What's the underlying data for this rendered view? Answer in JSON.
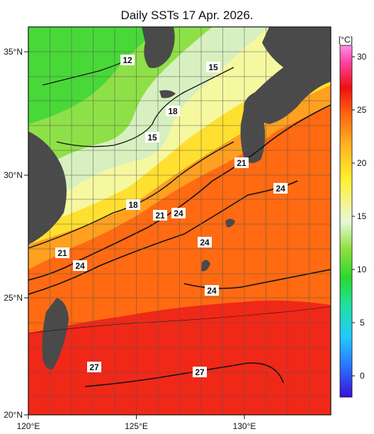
{
  "title": "Daily SSTs 17 Apr. 2026.",
  "map": {
    "lon_range": [
      120,
      134
    ],
    "lat_range": [
      20,
      36
    ],
    "lon_ticks": [
      "120°E",
      "125°E",
      "130°E"
    ],
    "lat_ticks": [
      "20°N",
      "25°N",
      "30°N",
      "35°N"
    ],
    "grid": true,
    "contour_labels": [
      "12",
      "15",
      "18",
      "15",
      "21",
      "24",
      "18",
      "21",
      "24",
      "24",
      "21",
      "24",
      "24",
      "27",
      "27"
    ]
  },
  "colorbar": {
    "unit": "[°C]",
    "ticks": [
      "0",
      "5",
      "10",
      "15",
      "20",
      "25",
      "30"
    ],
    "range": [
      -2,
      32
    ],
    "colors": [
      "#3a10d8",
      "#2a6cff",
      "#25c8ff",
      "#20e0a0",
      "#2ad830",
      "#8ee040",
      "#e8f8d8",
      "#fff030",
      "#ffb020",
      "#ff6a10",
      "#f01010",
      "#ff40a0",
      "#ff90e8"
    ]
  }
}
